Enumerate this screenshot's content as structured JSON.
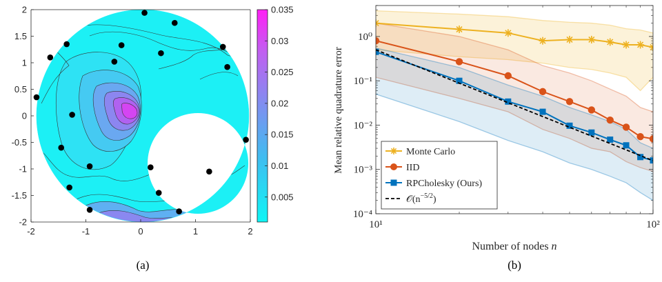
{
  "chart_data": [
    {
      "type": "heatmap",
      "panel_caption": "(a)",
      "domain": "disk of radius 2 centered at origin with circular hole of radius ~0.95 centered at (1.05, 0.05)",
      "xlim": [
        -2,
        2
      ],
      "ylim": [
        -2,
        2
      ],
      "x_ticks": [
        "-2",
        "-1",
        "0",
        "1",
        "2"
      ],
      "y_ticks": [
        "2",
        "1.5",
        "1",
        "0.5",
        "0",
        "-0.5",
        "-1",
        "-1.5",
        "-2"
      ],
      "colorbar": {
        "range": [
          0.001,
          0.035
        ],
        "tick_labels": [
          "0.035",
          "0.03",
          "0.025",
          "0.02",
          "0.015",
          "0.01",
          "0.005"
        ],
        "colormap": [
          "#00ffff",
          "#ff00ff"
        ]
      },
      "nodes": [
        [
          0.07,
          1.94
        ],
        [
          0.62,
          1.75
        ],
        [
          -1.35,
          1.35
        ],
        [
          -0.35,
          1.33
        ],
        [
          1.5,
          1.3
        ],
        [
          -1.65,
          1.1
        ],
        [
          0.37,
          1.18
        ],
        [
          -0.48,
          1.02
        ],
        [
          1.58,
          0.92
        ],
        [
          -1.9,
          0.35
        ],
        [
          -1.25,
          0.02
        ],
        [
          1.92,
          -0.45
        ],
        [
          -1.45,
          -0.6
        ],
        [
          -0.93,
          -0.95
        ],
        [
          0.18,
          -0.97
        ],
        [
          1.25,
          -1.05
        ],
        [
          -1.3,
          -1.35
        ],
        [
          0.33,
          -1.45
        ],
        [
          -0.93,
          -1.77
        ],
        [
          0.7,
          -1.8
        ]
      ],
      "contour_levels": [
        0.004,
        0.008,
        0.012,
        0.016,
        0.02,
        0.024,
        0.028
      ]
    },
    {
      "type": "line",
      "panel_caption": "(b)",
      "xlabel": "Number of nodes n",
      "ylabel": "Mean relative quadrature error",
      "x_scale": "log",
      "y_scale": "log",
      "xlim": [
        10,
        100
      ],
      "ylim": [
        0.0001,
        5
      ],
      "x_ticks": [
        "10¹",
        "10²"
      ],
      "y_ticks": [
        "10⁰",
        "10⁻¹",
        "10⁻²",
        "10⁻³",
        "10⁻⁴"
      ],
      "legend_position": "bottom-left",
      "series": [
        {
          "name": "Monte Carlo",
          "color": "#edb120",
          "marker": "star",
          "x": [
            10,
            20,
            30,
            40,
            50,
            60,
            70,
            80,
            90,
            100
          ],
          "y": [
            2.0,
            1.45,
            1.2,
            0.8,
            0.85,
            0.85,
            0.75,
            0.65,
            0.65,
            0.57
          ],
          "band_upper": [
            3.8,
            3.2,
            2.8,
            2.3,
            2.1,
            2.0,
            1.8,
            1.5,
            1.4,
            1.2
          ],
          "band_lower": [
            0.5,
            0.35,
            0.3,
            0.25,
            0.2,
            0.18,
            0.15,
            0.12,
            0.06,
            0.12
          ]
        },
        {
          "name": "IID",
          "color": "#d95319",
          "marker": "circle",
          "x": [
            10,
            20,
            30,
            40,
            50,
            60,
            70,
            80,
            90,
            100
          ],
          "y": [
            0.8,
            0.27,
            0.13,
            0.057,
            0.034,
            0.022,
            0.013,
            0.009,
            0.0055,
            0.0049
          ],
          "band_upper": [
            2.0,
            1.0,
            0.5,
            0.22,
            0.15,
            0.1,
            0.065,
            0.045,
            0.025,
            0.02
          ],
          "band_lower": [
            0.12,
            0.04,
            0.02,
            0.008,
            0.005,
            0.003,
            0.0025,
            0.0015,
            0.0011,
            0.0009
          ]
        },
        {
          "name": "RPCholesky (Ours)",
          "color": "#0072bd",
          "marker": "square",
          "x": [
            10,
            20,
            30,
            40,
            50,
            60,
            70,
            80,
            90,
            100
          ],
          "y": [
            0.45,
            0.1,
            0.034,
            0.02,
            0.0097,
            0.0068,
            0.0047,
            0.0035,
            0.0019,
            0.0016
          ],
          "band_upper": [
            0.55,
            0.2,
            0.08,
            0.045,
            0.025,
            0.017,
            0.012,
            0.008,
            0.004,
            0.003
          ],
          "band_lower": [
            0.05,
            0.012,
            0.0045,
            0.0025,
            0.0014,
            0.001,
            0.0007,
            0.0005,
            0.0003,
            0.0002
          ]
        },
        {
          "name": "O(n^-5/2)",
          "color": "#000000",
          "style": "dashed",
          "x": [
            10,
            100
          ],
          "y": [
            0.5,
            0.00158
          ]
        }
      ]
    }
  ],
  "labels": {
    "caption_a": "(a)",
    "caption_b": "(b)",
    "xlabel_b": "Number of nodes ",
    "xlabel_b_var": "n",
    "ylabel_b": "Mean relative quadrature error",
    "legend_mc": "Monte Carlo",
    "legend_iid": "IID",
    "legend_rpc": "RPCholesky (Ours)",
    "legend_rate_prefix": "𝒪(n",
    "legend_rate_exp": "−5/2",
    "legend_rate_suffix": ")"
  }
}
